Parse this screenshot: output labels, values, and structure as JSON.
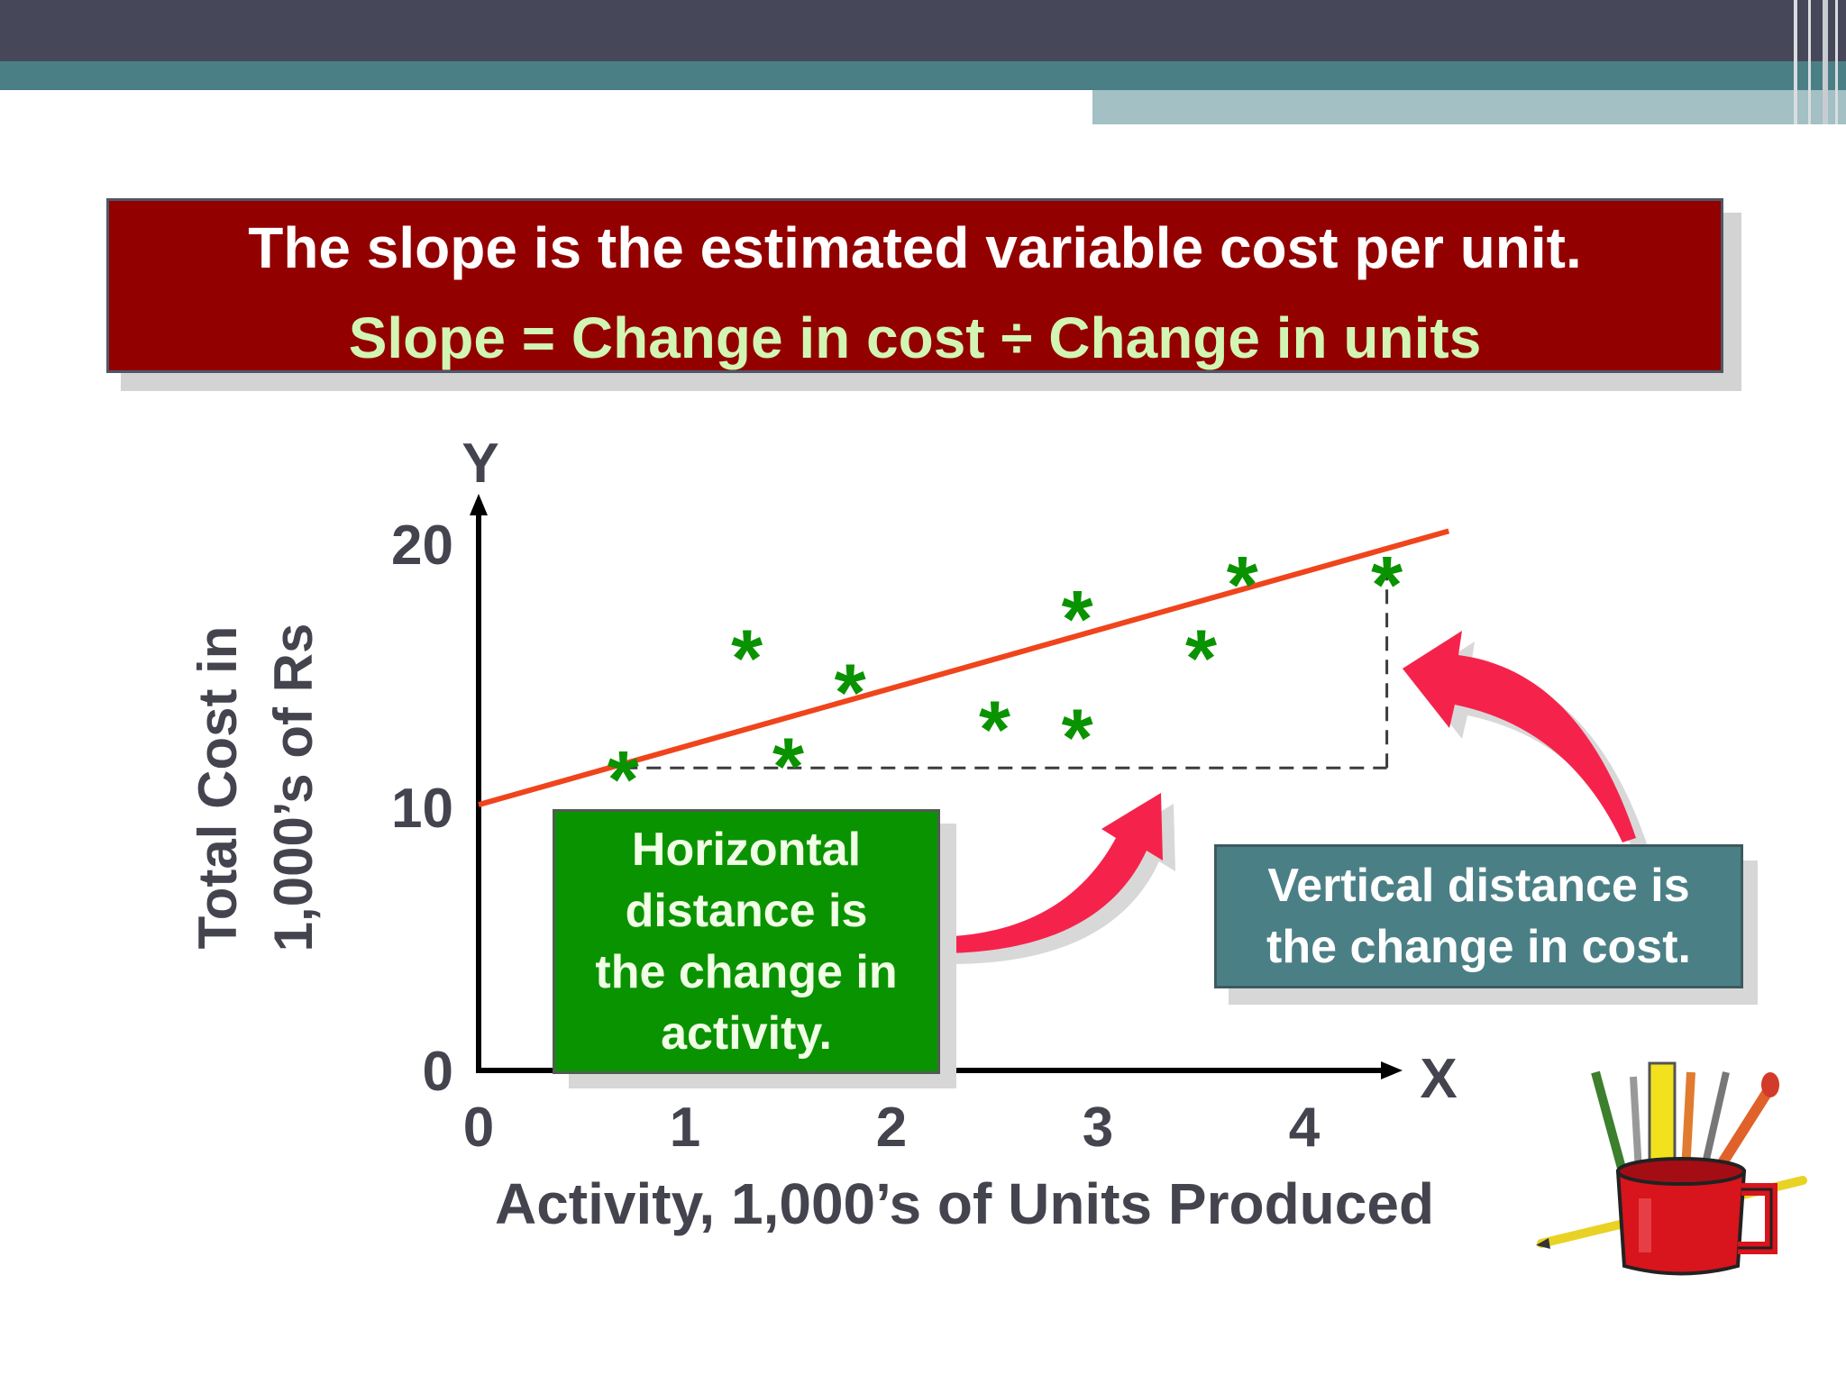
{
  "slide": {
    "title": "The slope is the estimated variable cost per unit.",
    "formula": "Slope = Change in cost ÷ Change in units"
  },
  "callouts": {
    "horizontal_lines": [
      "Horizontal",
      "distance is",
      "the change in",
      "activity."
    ],
    "vertical_lines": [
      "Vertical distance is",
      "the change in cost."
    ]
  },
  "clipart": {
    "icon": "pencil-mug-icon"
  },
  "colors": {
    "title_bg": "#930000",
    "formula_text": "#d2f5b3",
    "regression_line": "#f0441c",
    "points": "#0a9300",
    "arrow": "#f5234b",
    "horizontal_box": "#0a9300",
    "vertical_box": "#4b7f86"
  },
  "chart_data": {
    "type": "scatter",
    "xlabel": "Activity, 1,000’s of Units Produced",
    "ylabel_lines": [
      "Total Cost in",
      "1,000’s of Rs"
    ],
    "x_axis_letter": "X",
    "y_axis_letter": "Y",
    "xlim": [
      0,
      4.7
    ],
    "ylim": [
      0,
      20.5
    ],
    "x_ticks": [
      "0",
      "1",
      "2",
      "3",
      "4"
    ],
    "y_ticks": [
      "0",
      "10",
      "20"
    ],
    "grid": false,
    "marker": "*",
    "points": [
      {
        "x": 0.7,
        "y": 11.3
      },
      {
        "x": 1.3,
        "y": 15.9
      },
      {
        "x": 1.5,
        "y": 11.8
      },
      {
        "x": 1.8,
        "y": 14.6
      },
      {
        "x": 2.5,
        "y": 13.2
      },
      {
        "x": 2.9,
        "y": 17.4
      },
      {
        "x": 2.9,
        "y": 12.9
      },
      {
        "x": 3.5,
        "y": 15.9
      },
      {
        "x": 3.7,
        "y": 18.7
      },
      {
        "x": 4.4,
        "y": 18.7
      }
    ],
    "regression_line": {
      "x0": 0,
      "y0": 10.1,
      "x1": 4.7,
      "y1": 20.5
    },
    "guide": {
      "x_start": 0.7,
      "x_end": 4.4,
      "y_low": 11.5,
      "y_high": 19.2
    }
  }
}
